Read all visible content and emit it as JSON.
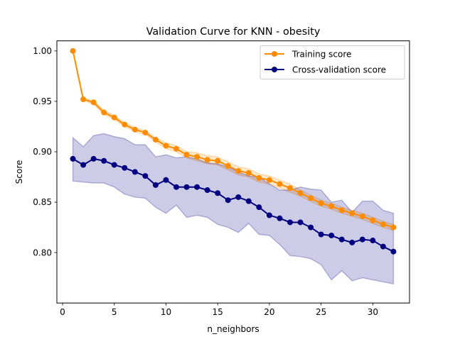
{
  "chart_data": {
    "type": "line",
    "title": "Validation Curve for KNN - obesity",
    "xlabel": "n_neighbors",
    "ylabel": "Score",
    "xlim": [
      -0.55,
      33.55
    ],
    "ylim": [
      0.75,
      1.01
    ],
    "xticks": [
      0,
      5,
      10,
      15,
      20,
      25,
      30
    ],
    "yticks": [
      0.8,
      0.85,
      0.9,
      0.95,
      1.0
    ],
    "ytick_labels": [
      "0.80",
      "0.85",
      "0.90",
      "0.95",
      "1.00"
    ],
    "x": [
      1,
      2,
      3,
      4,
      5,
      6,
      7,
      8,
      9,
      10,
      11,
      12,
      13,
      14,
      15,
      16,
      17,
      18,
      19,
      20,
      21,
      22,
      23,
      24,
      25,
      26,
      27,
      28,
      29,
      30,
      31,
      32
    ],
    "grid": false,
    "legend_position": "top-right",
    "series": [
      {
        "name": "Training score",
        "color": "#ff8c00",
        "band_alpha": 0.2,
        "values": [
          1.0,
          0.952,
          0.949,
          0.939,
          0.934,
          0.927,
          0.922,
          0.919,
          0.912,
          0.906,
          0.903,
          0.897,
          0.895,
          0.892,
          0.891,
          0.886,
          0.881,
          0.879,
          0.874,
          0.872,
          0.868,
          0.864,
          0.859,
          0.854,
          0.849,
          0.846,
          0.842,
          0.839,
          0.836,
          0.832,
          0.828,
          0.825
        ],
        "std": [
          0.0,
          0.001,
          0.002,
          0.002,
          0.002,
          0.002,
          0.002,
          0.002,
          0.002,
          0.003,
          0.003,
          0.003,
          0.004,
          0.004,
          0.004,
          0.004,
          0.004,
          0.004,
          0.004,
          0.004,
          0.004,
          0.004,
          0.003,
          0.003,
          0.003,
          0.003,
          0.003,
          0.003,
          0.003,
          0.003,
          0.003,
          0.003
        ]
      },
      {
        "name": "Cross-validation score",
        "color": "#000080",
        "band_alpha": 0.2,
        "values": [
          0.893,
          0.887,
          0.893,
          0.891,
          0.887,
          0.884,
          0.88,
          0.876,
          0.867,
          0.872,
          0.865,
          0.865,
          0.865,
          0.862,
          0.859,
          0.852,
          0.855,
          0.851,
          0.845,
          0.837,
          0.834,
          0.83,
          0.83,
          0.825,
          0.818,
          0.817,
          0.813,
          0.81,
          0.813,
          0.812,
          0.806,
          0.801
        ],
        "lower": [
          0.871,
          0.87,
          0.869,
          0.869,
          0.865,
          0.858,
          0.855,
          0.854,
          0.845,
          0.839,
          0.847,
          0.835,
          0.837,
          0.835,
          0.828,
          0.825,
          0.82,
          0.829,
          0.818,
          0.817,
          0.808,
          0.797,
          0.796,
          0.794,
          0.788,
          0.773,
          0.782,
          0.772,
          0.775,
          0.773,
          0.771,
          0.769
        ],
        "upper": [
          0.914,
          0.905,
          0.916,
          0.918,
          0.915,
          0.913,
          0.907,
          0.907,
          0.895,
          0.897,
          0.894,
          0.895,
          0.893,
          0.889,
          0.888,
          0.885,
          0.88,
          0.876,
          0.875,
          0.868,
          0.862,
          0.862,
          0.865,
          0.863,
          0.862,
          0.85,
          0.852,
          0.84,
          0.851,
          0.851,
          0.842,
          0.839
        ]
      }
    ]
  }
}
